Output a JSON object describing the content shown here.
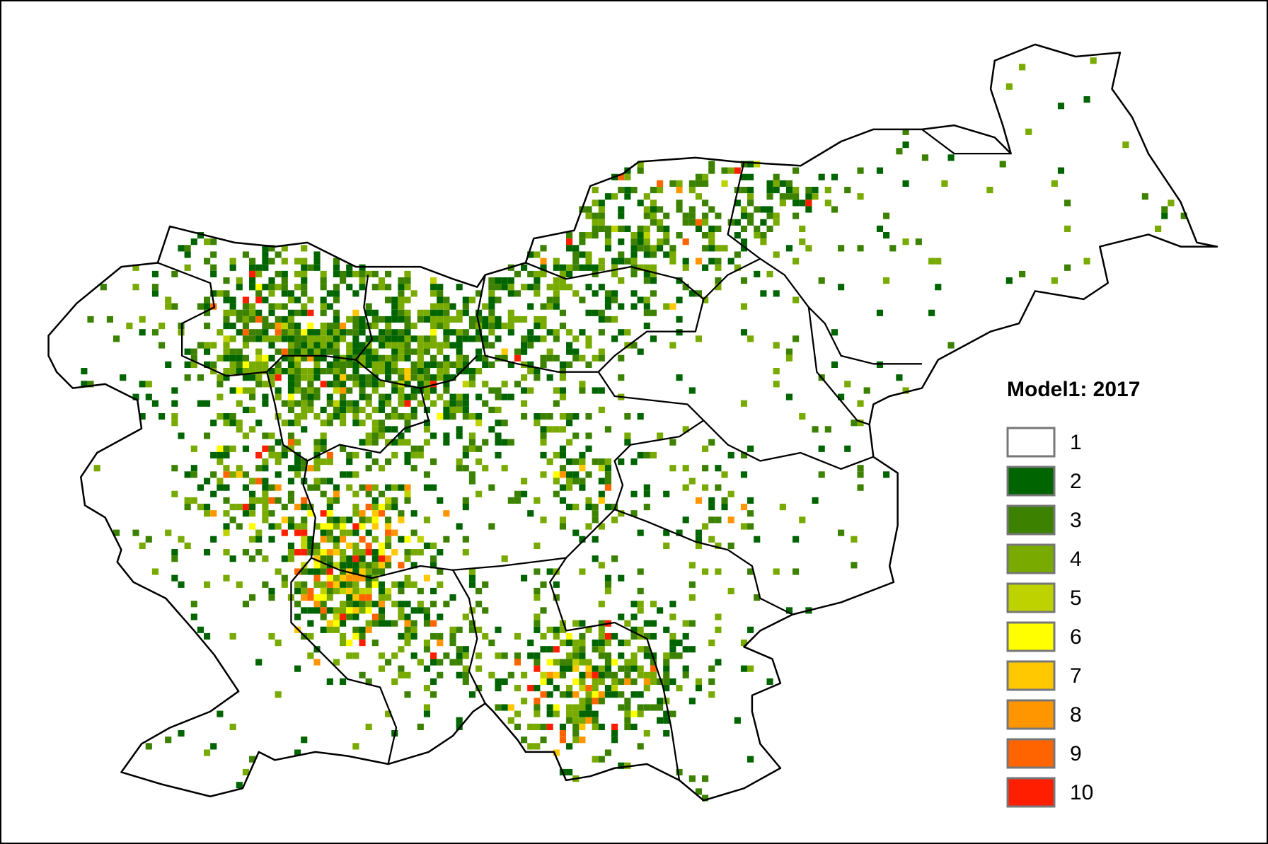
{
  "legend": {
    "title": "Model1: 2017",
    "items": [
      {
        "label": "1",
        "color": "#ffffff"
      },
      {
        "label": "2",
        "color": "#006400"
      },
      {
        "label": "3",
        "color": "#3c8200"
      },
      {
        "label": "4",
        "color": "#78aa00"
      },
      {
        "label": "5",
        "color": "#bed200"
      },
      {
        "label": "6",
        "color": "#ffff00"
      },
      {
        "label": "7",
        "color": "#ffc800"
      },
      {
        "label": "8",
        "color": "#ff9600"
      },
      {
        "label": "9",
        "color": "#ff6400"
      },
      {
        "label": "10",
        "color": "#ff1e00"
      }
    ]
  }
}
